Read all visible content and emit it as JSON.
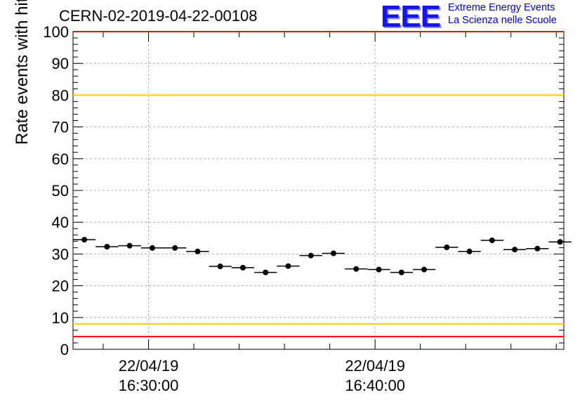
{
  "header": {
    "title": "CERN-02-2019-04-22-00108",
    "logo_text": "EEE",
    "logo_line1": "Extreme Energy Events",
    "logo_line2": "La Scienza nelle Scuole"
  },
  "colors": {
    "red_limit": "#ff0000",
    "yellow_limit": "#ffcc00",
    "logo_blue": "#1515e6",
    "grid": "#b0b0b0"
  },
  "chart_data": {
    "type": "scatter",
    "title": "CERN-02-2019-04-22-00108",
    "ylabel": "Rate events with hits [Hz]",
    "xlabel": "",
    "ylim": [
      0,
      100
    ],
    "y_ticks": [
      "0",
      "10",
      "20",
      "30",
      "40",
      "50",
      "60",
      "70",
      "80",
      "90",
      "100"
    ],
    "x_tick_labels": [
      {
        "date": "22/04/19",
        "time": "16:30:00"
      },
      {
        "date": "22/04/19",
        "time": "16:40:00"
      }
    ],
    "xlim": [
      "16:26:40",
      "16:48:20"
    ],
    "bin_width_seconds": 60,
    "grid": true,
    "reference_lines": [
      {
        "value": 100,
        "color": "red"
      },
      {
        "value": 80,
        "color": "yellow"
      },
      {
        "value": 8,
        "color": "yellow"
      },
      {
        "value": 4,
        "color": "red"
      }
    ],
    "series": [
      {
        "x": [
          "16:27:10",
          "16:28:10",
          "16:29:10",
          "16:30:10",
          "16:31:10",
          "16:32:10",
          "16:33:10",
          "16:34:10",
          "16:35:10",
          "16:36:10",
          "16:37:10",
          "16:38:10",
          "16:39:10",
          "16:40:10",
          "16:41:10",
          "16:42:10",
          "16:43:10",
          "16:44:10",
          "16:45:10",
          "16:46:10",
          "16:47:10",
          "16:48:10"
        ],
        "values": [
          34.5,
          32.3,
          32.6,
          31.9,
          31.9,
          30.8,
          26.1,
          25.7,
          24.2,
          26.2,
          29.5,
          30.2,
          25.3,
          25.1,
          24.2,
          25.1,
          32.1,
          30.8,
          34.3,
          31.4,
          31.7,
          33.8
        ]
      }
    ]
  }
}
